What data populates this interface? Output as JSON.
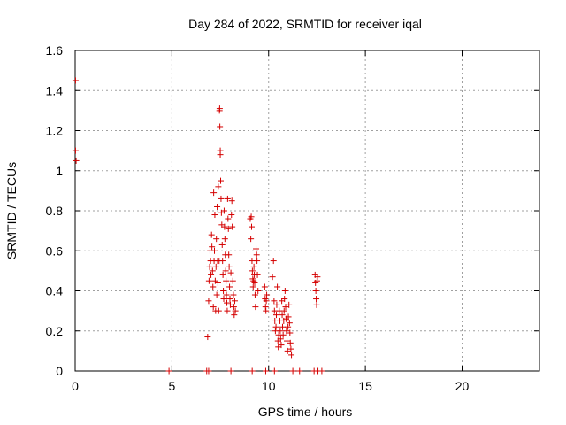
{
  "chart_data": {
    "type": "scatter",
    "title": "Day 284 of 2022, SRMTID for receiver iqal",
    "xlabel": "GPS time / hours",
    "ylabel": "SRMTID / TECUs",
    "xlim": [
      0,
      24
    ],
    "ylim": [
      0,
      1.6
    ],
    "xticks": [
      0,
      5,
      10,
      15,
      20
    ],
    "xtick_labels": [
      "0",
      "5",
      "10",
      "15",
      "20"
    ],
    "yticks": [
      0,
      0.2,
      0.4,
      0.6,
      0.8,
      1.0,
      1.2,
      1.4,
      1.6
    ],
    "ytick_labels": [
      "0",
      "0.2",
      "0.4",
      "0.6",
      "0.8",
      "1",
      "1.2",
      "1.4",
      "1.6"
    ],
    "grid": true,
    "marker": "plus",
    "color": "#d40000",
    "series": [
      {
        "name": "SRMTID",
        "points": [
          [
            0.02,
            1.45
          ],
          [
            0.02,
            1.1
          ],
          [
            0.05,
            1.05
          ],
          [
            6.85,
            0.17
          ],
          [
            6.9,
            0.35
          ],
          [
            6.92,
            0.45
          ],
          [
            6.95,
            0.52
          ],
          [
            6.97,
            0.6
          ],
          [
            7.0,
            0.55
          ],
          [
            7.02,
            0.48
          ],
          [
            7.05,
            0.68
          ],
          [
            7.07,
            0.62
          ],
          [
            7.1,
            0.5
          ],
          [
            7.12,
            0.42
          ],
          [
            7.14,
            0.32
          ],
          [
            7.16,
            0.89
          ],
          [
            7.18,
            0.55
          ],
          [
            7.2,
            0.6
          ],
          [
            7.22,
            0.78
          ],
          [
            7.24,
            0.45
          ],
          [
            7.26,
            0.3
          ],
          [
            7.28,
            0.52
          ],
          [
            7.3,
            0.66
          ],
          [
            7.32,
            0.38
          ],
          [
            7.34,
            0.82
          ],
          [
            7.36,
            0.55
          ],
          [
            7.38,
            0.44
          ],
          [
            7.4,
            0.92
          ],
          [
            7.42,
            0.3
          ],
          [
            7.44,
            0.55
          ],
          [
            7.46,
            1.3
          ],
          [
            7.47,
            1.31
          ],
          [
            7.48,
            1.22
          ],
          [
            7.5,
            1.1
          ],
          [
            7.5,
            1.08
          ],
          [
            7.52,
            0.95
          ],
          [
            7.54,
            0.86
          ],
          [
            7.56,
            0.79
          ],
          [
            7.58,
            0.73
          ],
          [
            7.6,
            0.63
          ],
          [
            7.62,
            0.55
          ],
          [
            7.64,
            0.48
          ],
          [
            7.66,
            0.4
          ],
          [
            7.68,
            0.36
          ],
          [
            7.7,
            0.8
          ],
          [
            7.72,
            0.72
          ],
          [
            7.74,
            0.66
          ],
          [
            7.76,
            0.58
          ],
          [
            7.78,
            0.5
          ],
          [
            7.8,
            0.45
          ],
          [
            7.82,
            0.38
          ],
          [
            7.84,
            0.34
          ],
          [
            7.86,
            0.3
          ],
          [
            7.88,
            0.86
          ],
          [
            7.9,
            0.76
          ],
          [
            7.92,
            0.71
          ],
          [
            7.94,
            0.58
          ],
          [
            7.96,
            0.52
          ],
          [
            7.98,
            0.42
          ],
          [
            8.0,
            0.36
          ],
          [
            8.02,
            0.33
          ],
          [
            8.05,
            0.49
          ],
          [
            8.08,
            0.78
          ],
          [
            8.1,
            0.85
          ],
          [
            8.12,
            0.72
          ],
          [
            8.15,
            0.45
          ],
          [
            8.18,
            0.38
          ],
          [
            8.2,
            0.32
          ],
          [
            8.22,
            0.28
          ],
          [
            8.25,
            0.35
          ],
          [
            8.28,
            0.3
          ],
          [
            9.05,
            0.76
          ],
          [
            9.08,
            0.66
          ],
          [
            9.1,
            0.77
          ],
          [
            9.12,
            0.72
          ],
          [
            9.14,
            0.55
          ],
          [
            9.16,
            0.5
          ],
          [
            9.18,
            0.46
          ],
          [
            9.2,
            0.42
          ],
          [
            9.22,
            0.45
          ],
          [
            9.24,
            0.52
          ],
          [
            9.26,
            0.48
          ],
          [
            9.28,
            0.44
          ],
          [
            9.3,
            0.38
          ],
          [
            9.32,
            0.32
          ],
          [
            9.35,
            0.61
          ],
          [
            9.38,
            0.58
          ],
          [
            9.4,
            0.55
          ],
          [
            9.42,
            0.48
          ],
          [
            9.45,
            0.4
          ],
          [
            9.8,
            0.42
          ],
          [
            9.82,
            0.36
          ],
          [
            9.84,
            0.32
          ],
          [
            9.86,
            0.3
          ],
          [
            9.88,
            0.35
          ],
          [
            9.9,
            0.38
          ],
          [
            10.2,
            0.47
          ],
          [
            10.25,
            0.55
          ],
          [
            10.28,
            0.35
          ],
          [
            10.3,
            0.3
          ],
          [
            10.32,
            0.25
          ],
          [
            10.35,
            0.2
          ],
          [
            10.38,
            0.22
          ],
          [
            10.4,
            0.28
          ],
          [
            10.42,
            0.33
          ],
          [
            10.45,
            0.42
          ],
          [
            10.48,
            0.15
          ],
          [
            10.5,
            0.12
          ],
          [
            10.52,
            0.18
          ],
          [
            10.55,
            0.3
          ],
          [
            10.58,
            0.25
          ],
          [
            10.6,
            0.2
          ],
          [
            10.62,
            0.16
          ],
          [
            10.65,
            0.13
          ],
          [
            10.68,
            0.35
          ],
          [
            10.7,
            0.28
          ],
          [
            10.72,
            0.22
          ],
          [
            10.75,
            0.18
          ],
          [
            10.78,
            0.25
          ],
          [
            10.8,
            0.3
          ],
          [
            10.82,
            0.36
          ],
          [
            10.85,
            0.4
          ],
          [
            10.88,
            0.32
          ],
          [
            10.9,
            0.26
          ],
          [
            10.92,
            0.2
          ],
          [
            10.95,
            0.15
          ],
          [
            10.98,
            0.1
          ],
          [
            11.0,
            0.22
          ],
          [
            11.02,
            0.27
          ],
          [
            11.05,
            0.33
          ],
          [
            11.08,
            0.24
          ],
          [
            11.1,
            0.19
          ],
          [
            11.12,
            0.14
          ],
          [
            11.15,
            0.11
          ],
          [
            11.18,
            0.08
          ],
          [
            12.4,
            0.48
          ],
          [
            12.42,
            0.44
          ],
          [
            12.44,
            0.4
          ],
          [
            12.46,
            0.36
          ],
          [
            12.48,
            0.33
          ],
          [
            12.5,
            0.45
          ],
          [
            12.52,
            0.47
          ],
          [
            4.85,
            0.0
          ],
          [
            6.8,
            0.0
          ],
          [
            6.9,
            0.0
          ],
          [
            8.05,
            0.0
          ],
          [
            9.15,
            0.0
          ],
          [
            9.85,
            0.0
          ],
          [
            10.3,
            0.0
          ],
          [
            11.25,
            0.0
          ],
          [
            11.6,
            0.0
          ],
          [
            12.35,
            0.0
          ],
          [
            12.55,
            0.0
          ],
          [
            12.75,
            0.0
          ]
        ]
      }
    ]
  }
}
